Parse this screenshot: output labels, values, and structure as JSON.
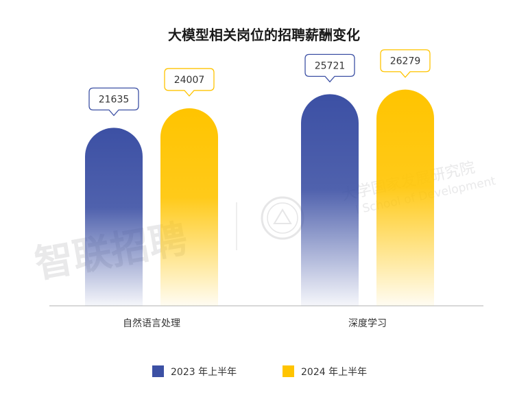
{
  "chart_data": {
    "type": "bar",
    "title": "大模型相关岗位的招聘薪酬变化",
    "categories": [
      "自然语言处理",
      "深度学习"
    ],
    "series": [
      {
        "name": "2023 年上半年",
        "values": [
          21635,
          25721
        ],
        "color": "#3c50a4"
      },
      {
        "name": "2024 年上半年",
        "values": [
          24007,
          26279
        ],
        "color": "#ffc400"
      }
    ],
    "ylim": [
      0,
      30000
    ],
    "grid": false,
    "legend_position": "bottom-center",
    "xlabel": "",
    "ylabel": ""
  },
  "watermarks": {
    "brand_text": "智联招聘",
    "institute_text": "大学国家发展研究院",
    "institute_en_text": "l School of Development"
  }
}
